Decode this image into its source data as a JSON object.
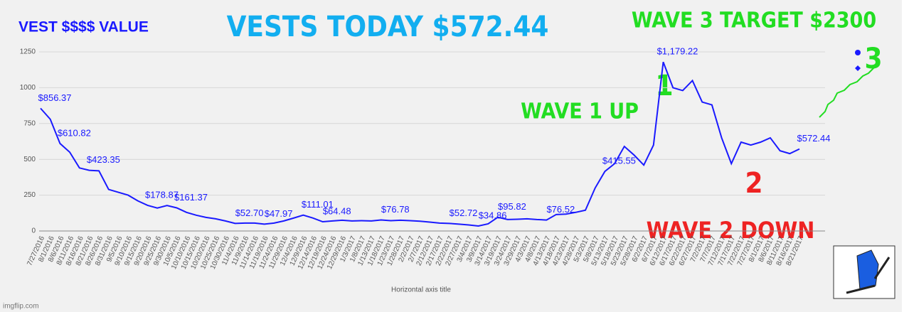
{
  "chart_data": {
    "type": "line",
    "title": "VEST $$$$ VALUE",
    "x_label": "Horizontal axis title",
    "categories": [
      "7/27/2016",
      "8/1/2016",
      "8/6/2016",
      "8/11/2016",
      "8/16/2016",
      "8/21/2016",
      "8/26/2016",
      "8/31/2016",
      "9/5/2016",
      "9/10/2016",
      "9/15/2016",
      "9/20/2016",
      "9/25/2016",
      "9/30/2016",
      "10/5/2016",
      "10/10/2016",
      "10/15/2016",
      "10/20/2016",
      "10/25/2016",
      "10/30/2016",
      "11/4/2016",
      "11/9/2016",
      "11/14/2016",
      "11/19/2016",
      "11/24/2016",
      "11/29/2016",
      "12/4/2016",
      "12/9/2016",
      "12/14/2016",
      "12/19/2016",
      "12/24/2016",
      "12/29/2016",
      "1/3/2017",
      "1/8/2017",
      "1/13/2017",
      "1/18/2017",
      "1/23/2017",
      "1/28/2017",
      "2/2/2017",
      "2/7/2017",
      "2/12/2017",
      "2/17/2017",
      "2/22/2017",
      "2/27/2017",
      "3/4/2017",
      "3/9/2017",
      "3/14/2017",
      "3/19/2017",
      "3/24/2017",
      "3/29/2017",
      "4/3/2017",
      "4/8/2017",
      "4/13/2017",
      "4/18/2017",
      "4/23/2017",
      "4/28/2017",
      "5/3/2017",
      "5/8/2017",
      "5/13/2017",
      "5/18/2017",
      "5/23/2017",
      "5/28/2017",
      "6/2/2017",
      "6/7/2017",
      "6/12/2017",
      "6/17/2017",
      "6/22/2017",
      "6/27/2017",
      "7/2/2017",
      "7/7/2017",
      "7/12/2017",
      "7/17/2017",
      "7/22/2017",
      "7/27/2017",
      "8/1/2017",
      "8/6/2017",
      "8/11/2017",
      "8/16/2017",
      "8/21/2017"
    ],
    "values": [
      856.37,
      780,
      610.82,
      550,
      440,
      423.35,
      420,
      290,
      270,
      250,
      210,
      178.87,
      160,
      178,
      161.37,
      130,
      110,
      95,
      85,
      70,
      52.7,
      55,
      55,
      47.97,
      55,
      70,
      90,
      111.01,
      90,
      64.48,
      70,
      75,
      70,
      72,
      70,
      76.78,
      72,
      75,
      72,
      68,
      62,
      55,
      52.72,
      48,
      42,
      34.86,
      50,
      95.82,
      80,
      82,
      85,
      80,
      76.52,
      115,
      118,
      130,
      145,
      300,
      415.55,
      470,
      590,
      530,
      460,
      600,
      1179.22,
      1000,
      980,
      1050,
      900,
      880,
      650,
      470,
      620,
      600,
      620,
      650,
      560,
      540,
      572.44
    ],
    "value_labels": [
      "$856.37",
      null,
      "$610.82",
      null,
      null,
      "$423.35",
      null,
      null,
      null,
      null,
      null,
      "$178.87",
      null,
      null,
      "$161.37",
      null,
      null,
      null,
      null,
      null,
      "$52.70",
      null,
      null,
      "$47.97",
      null,
      null,
      null,
      "$111.01",
      null,
      "$64.48",
      null,
      null,
      null,
      null,
      null,
      "$76.78",
      null,
      null,
      null,
      null,
      null,
      null,
      "$52.72",
      null,
      null,
      "$34.86",
      null,
      "$95.82",
      null,
      null,
      null,
      null,
      "$76.52",
      null,
      null,
      null,
      null,
      null,
      "$415.55",
      null,
      null,
      null,
      null,
      null,
      "$1,179.22",
      null,
      null,
      null,
      null,
      null,
      null,
      null,
      null,
      null,
      null,
      null,
      null,
      null,
      "$572.44"
    ],
    "color": "#1a1aff",
    "ylim": [
      0,
      1250
    ],
    "yticks": [
      0,
      250,
      500,
      750,
      1000,
      1250
    ],
    "grid": true,
    "annotations": {
      "today": "VESTS TODAY  $572.44",
      "target": "WAVE 3 TARGET   $2300",
      "wave3": "3",
      "wave1": "1",
      "wave1_text": "WAVE 1 UP",
      "wave2": "2",
      "wave2_text": "WAVE  2  DOWN"
    },
    "watermark": "imgflip.com"
  }
}
